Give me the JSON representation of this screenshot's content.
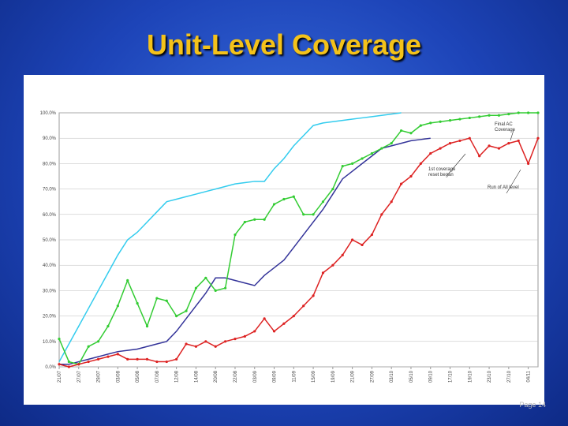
{
  "slide": {
    "title": "Unit-Level Coverage",
    "footer": "Page 14"
  },
  "chart_data": {
    "type": "line",
    "categories": [
      "21/07",
      null,
      "27/07",
      null,
      "29/07",
      null,
      "03/08",
      null,
      "05/08",
      null,
      "07/08",
      null,
      "12/08",
      null,
      "14/08",
      null,
      "20/08",
      null,
      "22/08",
      null,
      "03/09",
      null,
      "09/09",
      null,
      "11/09",
      null,
      "15/09",
      null,
      "19/09",
      null,
      "21/09",
      null,
      "27/09",
      null,
      "03/10",
      null,
      "05/10",
      null,
      "09/10",
      null,
      "17/10",
      null,
      "19/10",
      null,
      "23/10",
      null,
      "27/10",
      null,
      "04/11",
      null
    ],
    "series": [
      {
        "color": "#33ccee",
        "markers": false,
        "values": [
          2,
          9,
          16,
          23,
          30,
          37,
          44,
          50,
          53,
          57,
          61,
          65,
          66,
          67,
          68,
          69,
          70,
          71,
          72,
          72.5,
          73,
          73,
          78,
          82,
          87,
          91,
          95,
          96,
          96.5,
          97,
          97.5,
          98,
          98.5,
          99,
          99.5,
          100,
          null,
          null,
          null,
          null,
          null,
          null,
          null,
          null,
          null,
          null,
          null,
          null,
          null,
          null
        ]
      },
      {
        "color": "#333399",
        "markers": false,
        "values": [
          1,
          1,
          2,
          3,
          4,
          5,
          6,
          6.5,
          7,
          8,
          9,
          10,
          14,
          19,
          24,
          29,
          35,
          35,
          34,
          33,
          32,
          36,
          39,
          42,
          47,
          52,
          57,
          62,
          68,
          74,
          77,
          80,
          83,
          86,
          87,
          88,
          89,
          89.5,
          90,
          null,
          null,
          null,
          null,
          null,
          null,
          null,
          null,
          null,
          null,
          null
        ]
      },
      {
        "color": "#33cc33",
        "markers": true,
        "values": [
          11,
          2,
          1,
          8,
          10,
          16,
          24,
          34,
          25,
          16,
          27,
          26,
          20,
          22,
          31,
          35,
          30,
          31,
          52,
          57,
          58,
          58,
          64,
          66,
          67,
          60,
          60,
          65,
          70,
          79,
          80,
          82,
          84,
          86,
          88,
          93,
          92,
          95,
          96,
          96.5,
          97,
          97.5,
          98,
          98.5,
          99,
          99,
          99.5,
          100,
          100,
          100
        ]
      },
      {
        "color": "#dd2222",
        "markers": true,
        "values": [
          1,
          0,
          1,
          2,
          3,
          4,
          5,
          3,
          3,
          3,
          2,
          2,
          3,
          9,
          8,
          10,
          8,
          10,
          11,
          12,
          14,
          19,
          14,
          17,
          20,
          24,
          28,
          37,
          40,
          44,
          50,
          48,
          52,
          60,
          65,
          72,
          75,
          80,
          84,
          86,
          88,
          89,
          90,
          83,
          87,
          86,
          88,
          89,
          80,
          90
        ]
      }
    ],
    "ylim": [
      0,
      100
    ],
    "yticks": [
      {
        "value": 0,
        "label": "0.0%"
      },
      {
        "value": 10,
        "label": "10.0%"
      },
      {
        "value": 20,
        "label": "20.0%"
      },
      {
        "value": 30,
        "label": "30.0%"
      },
      {
        "value": 40,
        "label": "40.0%"
      },
      {
        "value": 50,
        "label": "50.0%"
      },
      {
        "value": 60,
        "label": "60.0%"
      },
      {
        "value": 70,
        "label": "70.0%"
      },
      {
        "value": 80,
        "label": "80.0%"
      },
      {
        "value": 90,
        "label": "90.0%"
      },
      {
        "value": 100,
        "label": "100.0%"
      }
    ],
    "grid": true,
    "annotations": [
      "Final AC Coverage",
      "1st coverage reset began",
      "Run of All level"
    ]
  }
}
